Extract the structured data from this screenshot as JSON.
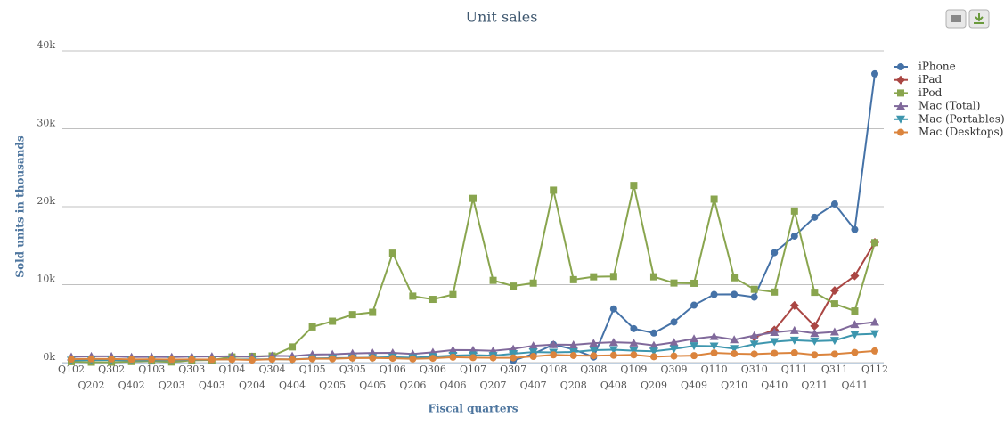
{
  "chart_data": {
    "type": "line",
    "title": "Unit sales",
    "y_label": "Sold units in thousands",
    "x_label": "Fiscal quarters",
    "grid": true,
    "legend": "right",
    "categories": [
      "Q102",
      "Q202",
      "Q302",
      "Q402",
      "Q103",
      "Q203",
      "Q303",
      "Q403",
      "Q104",
      "Q204",
      "Q304",
      "Q404",
      "Q105",
      "Q205",
      "Q305",
      "Q405",
      "Q106",
      "Q206",
      "Q306",
      "Q406",
      "Q107",
      "Q207",
      "Q307",
      "Q407",
      "Q108",
      "Q208",
      "Q308",
      "Q408",
      "Q109",
      "Q209",
      "Q309",
      "Q409",
      "Q110",
      "Q210",
      "Q310",
      "Q410",
      "Q111",
      "Q211",
      "Q311",
      "Q411",
      "Q112"
    ],
    "ylim": [
      0,
      40000
    ],
    "yticks": [
      {
        "value": 0,
        "label": "0k"
      },
      {
        "value": 10000,
        "label": "10k"
      },
      {
        "value": 20000,
        "label": "20k"
      },
      {
        "value": 30000,
        "label": "30k"
      },
      {
        "value": 40000,
        "label": "40k"
      }
    ],
    "series": [
      {
        "name": "iPhone",
        "color": "#4572A7",
        "marker": "circle",
        "values": [
          null,
          null,
          null,
          null,
          null,
          null,
          null,
          null,
          null,
          null,
          null,
          null,
          null,
          null,
          null,
          null,
          null,
          null,
          null,
          null,
          null,
          null,
          270,
          1119,
          2315,
          1703,
          717,
          6892,
          4363,
          3793,
          5208,
          7367,
          8737,
          8752,
          8398,
          14102,
          16235,
          18647,
          20338,
          17070,
          37044
        ]
      },
      {
        "name": "iPad",
        "color": "#AA4643",
        "marker": "diamond",
        "values": [
          null,
          null,
          null,
          null,
          null,
          null,
          null,
          null,
          null,
          null,
          null,
          null,
          null,
          null,
          null,
          null,
          null,
          null,
          null,
          null,
          null,
          null,
          null,
          null,
          null,
          null,
          null,
          null,
          null,
          null,
          null,
          null,
          null,
          null,
          3270,
          4188,
          7331,
          4694,
          9246,
          11123,
          15434
        ]
      },
      {
        "name": "iPod",
        "color": "#89A54E",
        "marker": "square",
        "values": [
          125,
          57,
          54,
          140,
          219,
          78,
          304,
          336,
          733,
          807,
          860,
          2016,
          4580,
          5311,
          6155,
          6451,
          14043,
          8526,
          8111,
          8729,
          21066,
          10549,
          9815,
          10200,
          22121,
          10644,
          11011,
          11052,
          22727,
          11013,
          10215,
          10177,
          20970,
          10885,
          9406,
          9051,
          19446,
          9017,
          7535,
          6622,
          15397
        ]
      },
      {
        "name": "Mac (Total)",
        "color": "#80699B",
        "marker": "triangle",
        "values": [
          746,
          813,
          808,
          718,
          744,
          711,
          771,
          787,
          829,
          749,
          876,
          836,
          1046,
          1070,
          1182,
          1236,
          1254,
          1112,
          1327,
          1610,
          1606,
          1517,
          1764,
          2164,
          2319,
          2289,
          2496,
          2611,
          2524,
          2216,
          2603,
          3053,
          3362,
          2943,
          3472,
          3885,
          4134,
          3760,
          3947,
          4894,
          5198
        ]
      },
      {
        "name": "Mac (Portables)",
        "color": "#3D96AE",
        "marker": "triangle-down",
        "values": [
          296,
          333,
          338,
          298,
          314,
          311,
          351,
          387,
          419,
          409,
          436,
          416,
          546,
          570,
          602,
          636,
          694,
          632,
          767,
          910,
          966,
          897,
          1144,
          1364,
          1319,
          1369,
          1606,
          1661,
          1524,
          1456,
          1753,
          2153,
          2112,
          1793,
          2372,
          2685,
          2874,
          2760,
          2847,
          3594,
          3698
        ]
      },
      {
        "name": "Mac (Desktops)",
        "color": "#DB843D",
        "marker": "circle",
        "values": [
          450,
          480,
          470,
          420,
          430,
          400,
          420,
          400,
          410,
          340,
          440,
          420,
          500,
          500,
          580,
          600,
          560,
          480,
          560,
          700,
          640,
          620,
          620,
          800,
          1000,
          920,
          890,
          950,
          1000,
          760,
          850,
          900,
          1250,
          1150,
          1100,
          1200,
          1260,
          1000,
          1100,
          1300,
          1500
        ]
      }
    ]
  }
}
